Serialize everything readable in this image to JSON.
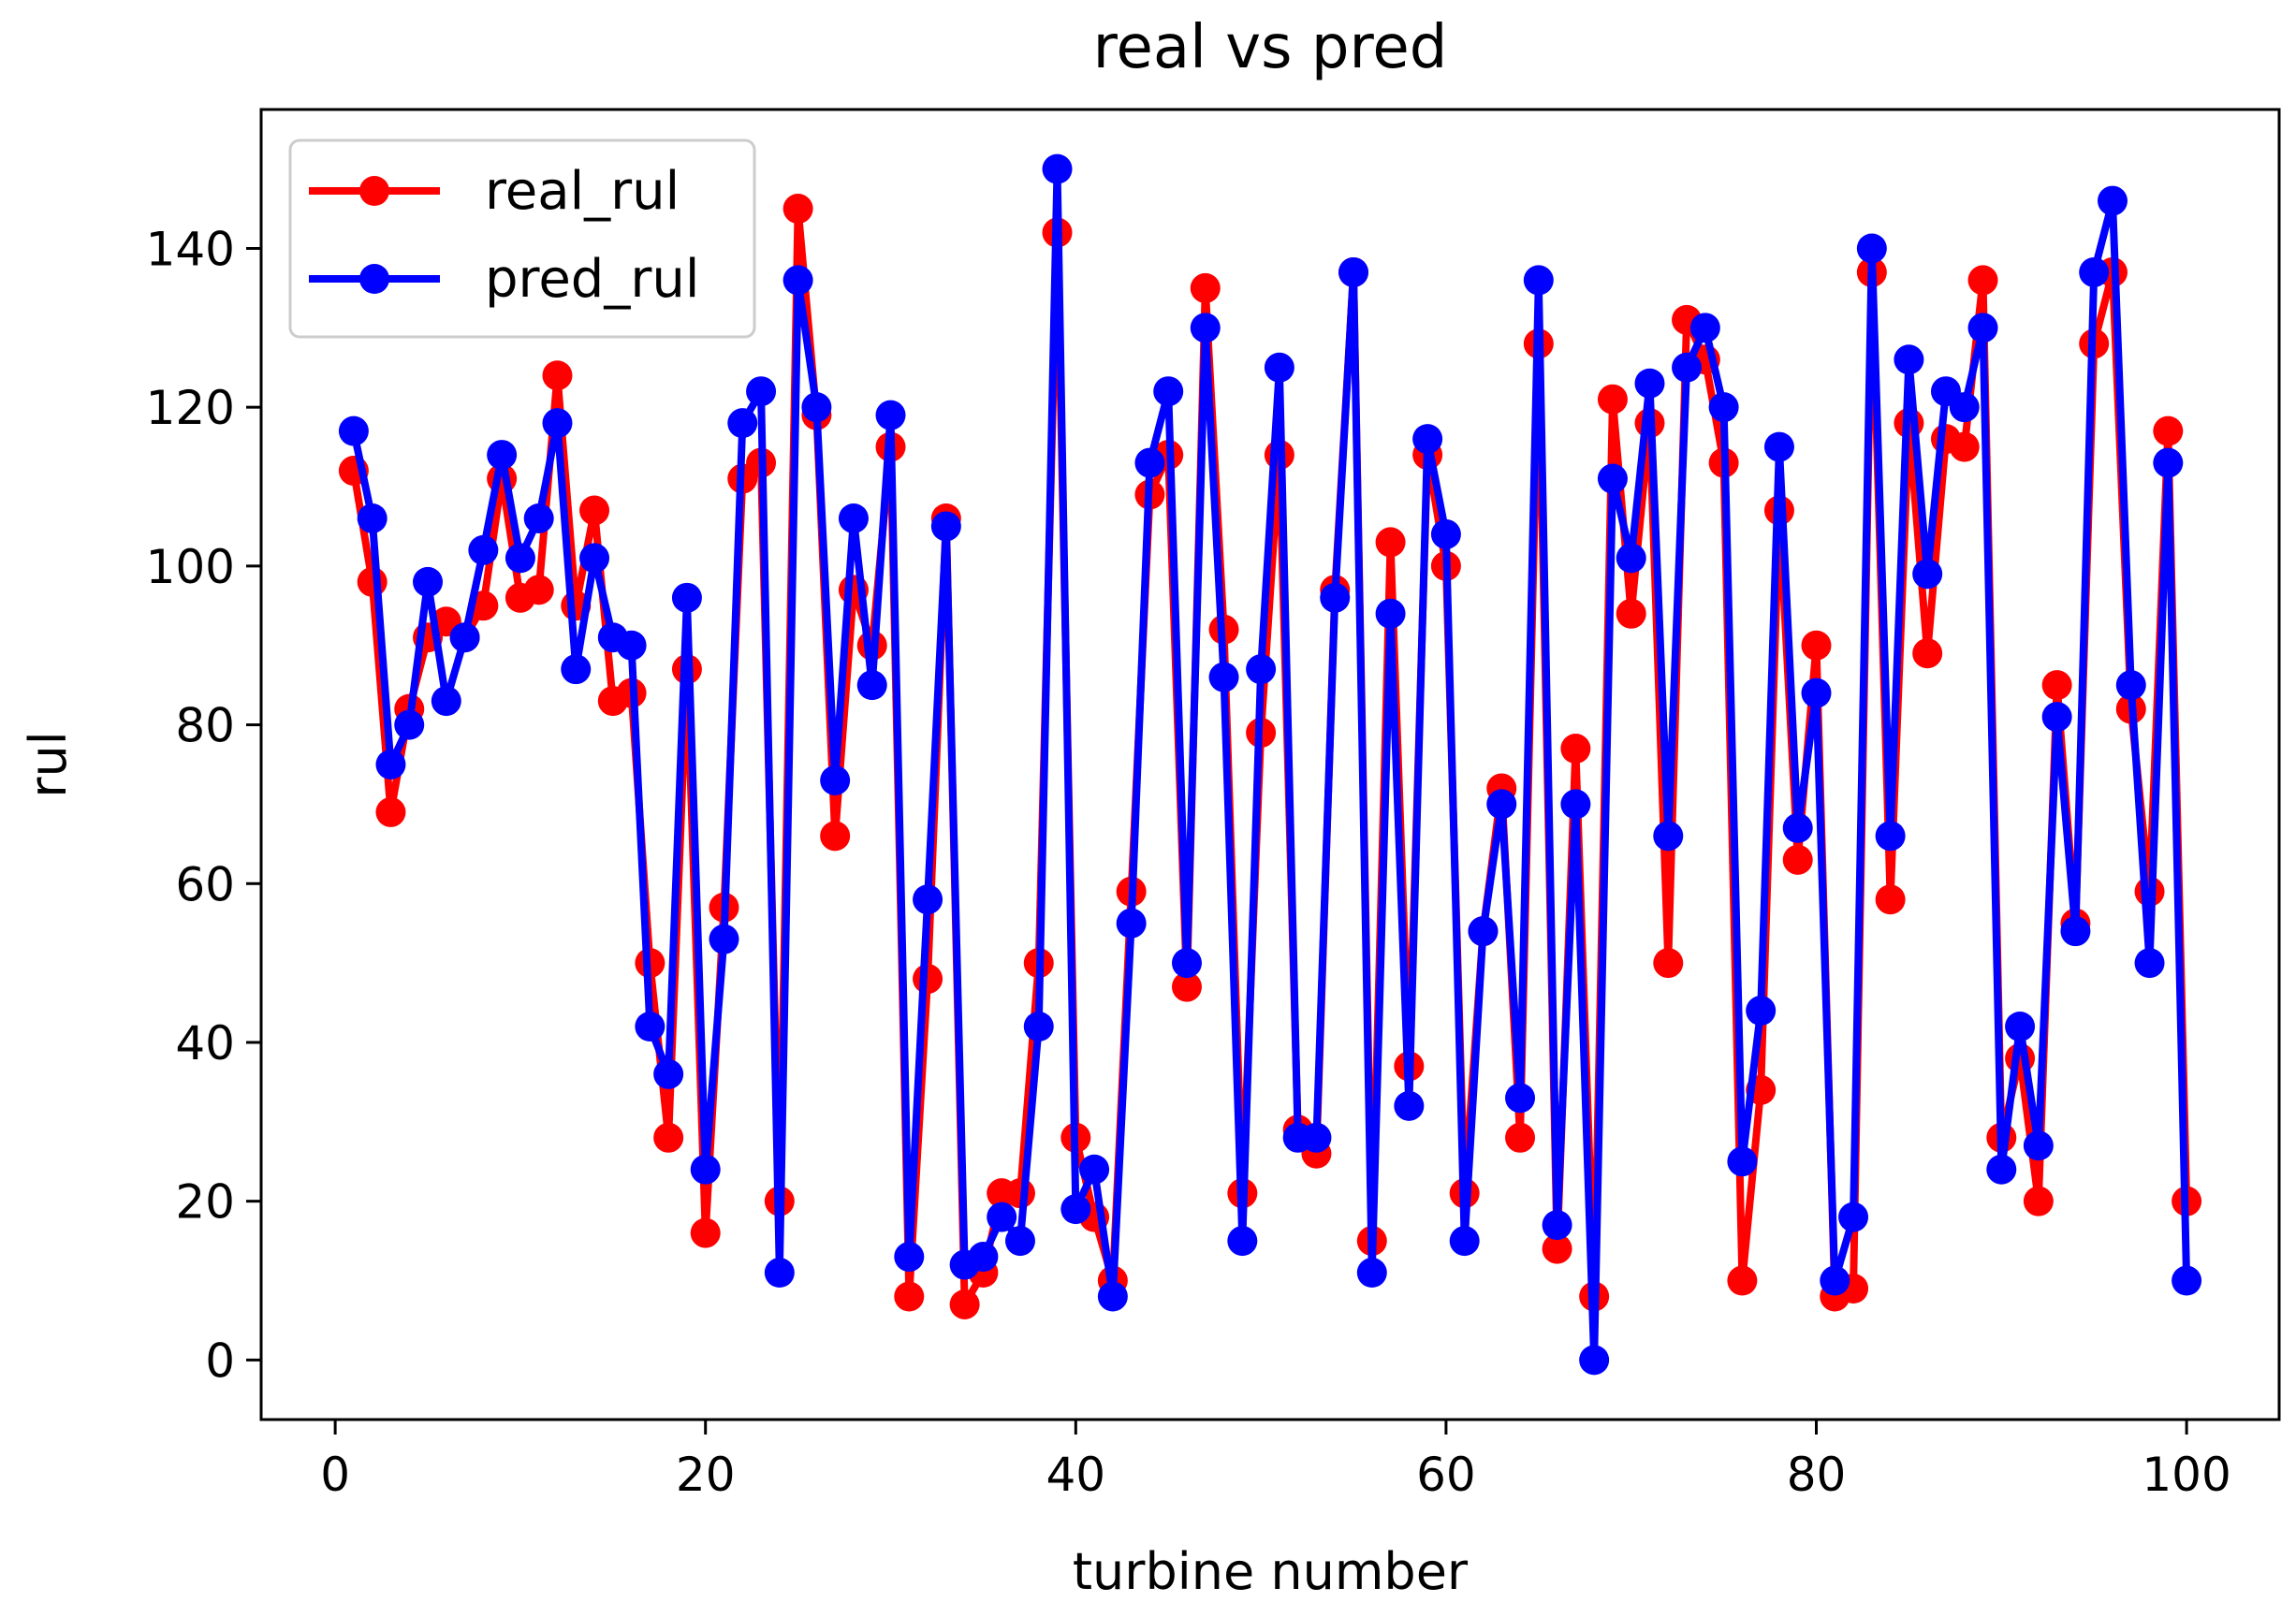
{
  "chart_data": {
    "type": "line",
    "title": "real vs pred",
    "xlabel": "turbine number",
    "ylabel": "rul",
    "xlim": [
      -4,
      105
    ],
    "ylim": [
      -7.5,
      157.5
    ],
    "xticks": [
      0,
      20,
      40,
      60,
      80,
      100
    ],
    "yticks": [
      0,
      20,
      40,
      60,
      80,
      100,
      120,
      140
    ],
    "xtick_labels": [
      "0",
      "20",
      "40",
      "60",
      "80",
      "100"
    ],
    "ytick_labels": [
      "0",
      "20",
      "40",
      "60",
      "80",
      "100",
      "120",
      "140"
    ],
    "legend": {
      "position": "top-left",
      "entries": [
        "real_rul",
        "pred_rul"
      ]
    },
    "grid": false,
    "x": [
      1,
      2,
      3,
      4,
      5,
      6,
      7,
      8,
      9,
      10,
      11,
      12,
      13,
      14,
      15,
      16,
      17,
      18,
      19,
      20,
      21,
      22,
      23,
      24,
      25,
      26,
      27,
      28,
      29,
      30,
      31,
      32,
      33,
      34,
      35,
      36,
      37,
      38,
      39,
      40,
      41,
      42,
      43,
      44,
      45,
      46,
      47,
      48,
      49,
      50,
      51,
      52,
      53,
      54,
      55,
      56,
      57,
      58,
      59,
      60,
      61,
      62,
      63,
      64,
      65,
      66,
      67,
      68,
      69,
      70,
      71,
      72,
      73,
      74,
      75,
      76,
      77,
      78,
      79,
      80,
      81,
      82,
      83,
      84,
      85,
      86,
      87,
      88,
      89,
      90,
      91,
      92,
      93,
      94,
      95,
      96,
      97,
      98,
      99,
      100
    ],
    "series": [
      {
        "name": "real_rul",
        "color": "#ff0000",
        "values": [
          112,
          98,
          69,
          82,
          91,
          93,
          91,
          95,
          111,
          96,
          97,
          124,
          95,
          107,
          83,
          84,
          50,
          28,
          87,
          16,
          57,
          111,
          113,
          20,
          145,
          119,
          66,
          97,
          90,
          115,
          8,
          48,
          106,
          7,
          11,
          21,
          21,
          50,
          142,
          28,
          18,
          10,
          59,
          109,
          114,
          47,
          135,
          92,
          21,
          79,
          114,
          29,
          26,
          97,
          137,
          15,
          103,
          37,
          114,
          100,
          21,
          54,
          72,
          28,
          128,
          14,
          77,
          8,
          121,
          94,
          118,
          50,
          131,
          126,
          113,
          10,
          34,
          107,
          63,
          90,
          8,
          9,
          137,
          58,
          118,
          89,
          116,
          115,
          136,
          28,
          38,
          20,
          85,
          55,
          128,
          137,
          82,
          59,
          117,
          20
        ]
      },
      {
        "name": "pred_rul",
        "color": "#0000ff",
        "values": [
          117,
          106,
          75,
          80,
          98,
          83,
          91,
          102,
          114,
          101,
          106,
          118,
          87,
          101,
          91,
          90,
          42,
          36,
          96,
          24,
          53,
          118,
          122,
          11,
          136,
          120,
          73,
          106,
          85,
          119,
          13,
          58,
          105,
          12,
          13,
          18,
          15,
          42,
          150,
          19,
          24,
          8,
          55,
          113,
          122,
          50,
          130,
          86,
          15,
          87,
          125,
          28,
          28,
          96,
          137,
          11,
          94,
          32,
          116,
          104,
          15,
          54,
          70,
          33,
          136,
          17,
          70,
          0,
          111,
          101,
          123,
          66,
          125,
          130,
          120,
          25,
          44,
          115,
          67,
          84,
          10,
          18,
          140,
          66,
          126,
          99,
          122,
          120,
          130,
          24,
          42,
          27,
          81,
          54,
          137,
          146,
          85,
          50,
          113,
          10
        ]
      }
    ]
  }
}
